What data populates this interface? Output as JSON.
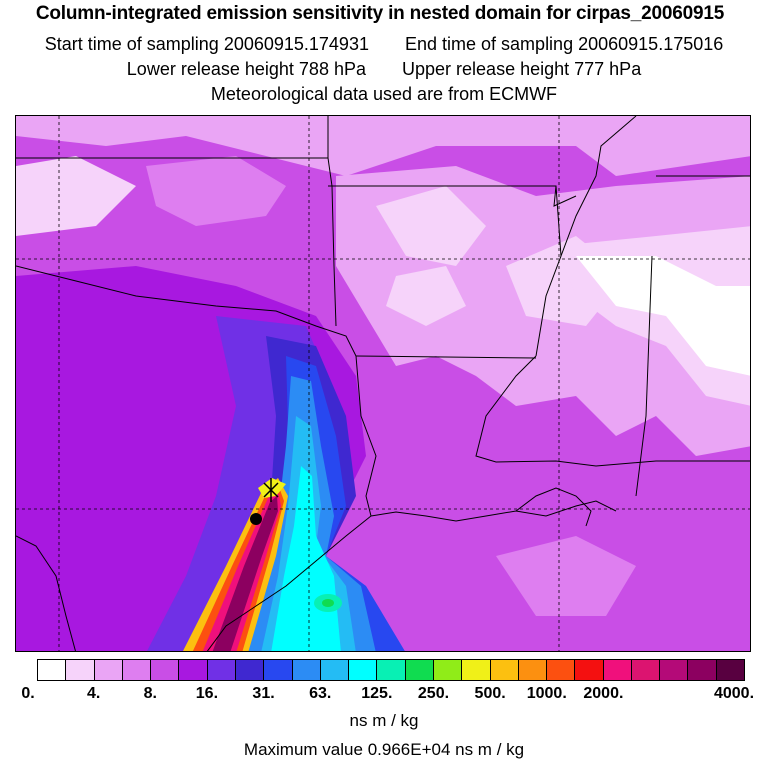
{
  "header": {
    "title": "Column-integrated emission sensitivity in nested domain for cirpas_20060915",
    "start_label": "Start time of sampling",
    "start_value": "20060915.174931",
    "end_label": "End time of sampling",
    "end_value": "20060915.175016",
    "lower_label": "Lower release height",
    "lower_value": "788 hPa",
    "upper_label": "Upper release height",
    "upper_value": "777 hPa",
    "met_line": "Meteorological data used are from ECMWF"
  },
  "legend": {
    "colors": [
      "#ffffff",
      "#f6d3fa",
      "#eaa5f5",
      "#de7ef0",
      "#c94ee6",
      "#a818e0",
      "#7030e6",
      "#3f28d0",
      "#2848f0",
      "#2c8cf4",
      "#24bcf4",
      "#00ffff",
      "#08f0b4",
      "#10dc50",
      "#90ec18",
      "#f0f018",
      "#fcc010",
      "#fc9010",
      "#fc5010",
      "#f41010",
      "#f0107c",
      "#dc1470",
      "#b40a78",
      "#8c0060",
      "#580040"
    ],
    "ticks": [
      "0.",
      "4.",
      "8.",
      "16.",
      "31.",
      "63.",
      "125.",
      "250.",
      "500.",
      "1000.",
      "2000.",
      "4000."
    ],
    "unit": "ns m / kg",
    "max_label": "Maximum value",
    "max_value": "0.966E+04 ns m / kg"
  },
  "map": {
    "background_color": "#c94ee6",
    "release_marker": "release-point-cross",
    "receptor_marker": "receptor-dot"
  }
}
